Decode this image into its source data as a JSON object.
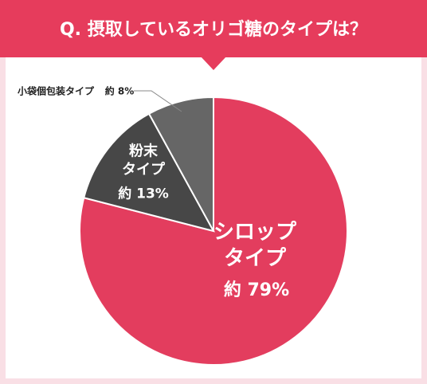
{
  "chart_data": {
    "type": "pie",
    "title": "Q. 摂取しているオリゴ糖のタイプは？",
    "categories": [
      "シロップ\nタイプ",
      "粉末\nタイプ",
      "小袋個包装タイプ"
    ],
    "values": [
      79,
      13,
      8
    ],
    "value_labels": [
      "約 79%",
      "約 13%",
      "約 8%"
    ],
    "colors": [
      "#e33d5e",
      "#474747",
      "#666666"
    ]
  }
}
